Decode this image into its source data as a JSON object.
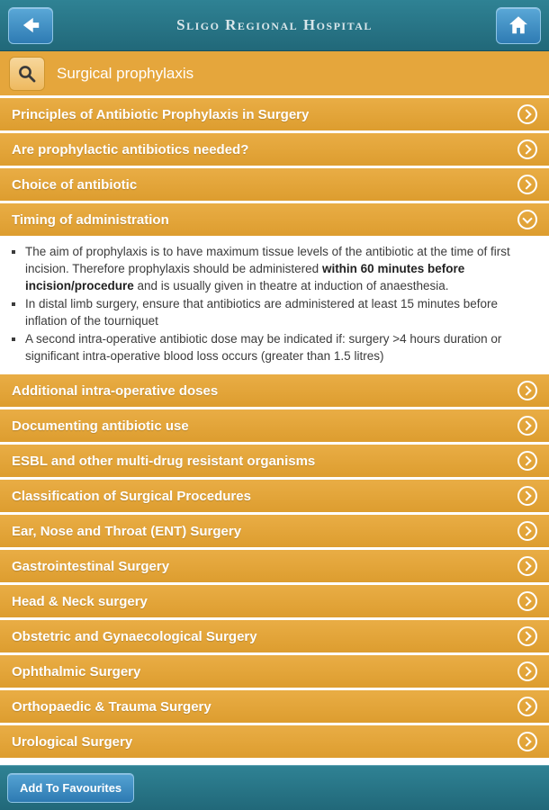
{
  "header": {
    "title": "Sligo Regional Hospital"
  },
  "icons": {
    "back": "back-arrow",
    "home": "home",
    "search": "magnifier",
    "collapsed": "chevron-right-circle",
    "expanded": "chevron-down-circle"
  },
  "search": {
    "value": "Surgical prophylaxis"
  },
  "accordion": {
    "items": [
      {
        "label": "Principles of Antibiotic Prophylaxis in Surgery",
        "expanded": false
      },
      {
        "label": "Are prophylactic antibiotics needed?",
        "expanded": false
      },
      {
        "label": "Choice of antibiotic",
        "expanded": false
      },
      {
        "label": "Timing of administration",
        "expanded": true,
        "content": [
          {
            "segments": [
              {
                "text": "The aim of prophylaxis is to have maximum tissue levels of the antibiotic at the time of first incision. Therefore prophylaxis should be administered ",
                "bold": false
              },
              {
                "text": "within 60 minutes before incision/procedure",
                "bold": true
              },
              {
                "text": " and is usually given in theatre at induction of anaesthesia.",
                "bold": false
              }
            ]
          },
          {
            "segments": [
              {
                "text": "In distal limb surgery, ensure that antibiotics are administered at least 15 minutes before inflation of the tourniquet",
                "bold": false
              }
            ]
          },
          {
            "segments": [
              {
                "text": "A second intra-operative antibiotic dose may be indicated if: surgery >4 hours duration or significant intra-operative blood loss occurs (greater than 1.5 litres)",
                "bold": false
              }
            ]
          }
        ]
      },
      {
        "label": "Additional intra-operative doses",
        "expanded": false
      },
      {
        "label": "Documenting antibiotic use",
        "expanded": false
      },
      {
        "label": "ESBL and other multi-drug resistant organisms",
        "expanded": false
      },
      {
        "label": "Classification of Surgical Procedures",
        "expanded": false
      },
      {
        "label": "Ear, Nose and Throat (ENT) Surgery",
        "expanded": false
      },
      {
        "label": "Gastrointestinal Surgery",
        "expanded": false
      },
      {
        "label": "Head & Neck surgery",
        "expanded": false
      },
      {
        "label": "Obstetric and Gynaecological Surgery",
        "expanded": false
      },
      {
        "label": "Ophthalmic Surgery",
        "expanded": false
      },
      {
        "label": "Orthopaedic & Trauma Surgery",
        "expanded": false
      },
      {
        "label": "Urological Surgery",
        "expanded": false
      }
    ]
  },
  "footer": {
    "favourites_label": "Add To Favourites"
  },
  "colors": {
    "header_teal": "#27768a",
    "accent_orange": "#e2a237",
    "button_blue": "#3d8ec6",
    "bar_text": "#ffffff",
    "body_text": "#3b3b3b"
  }
}
